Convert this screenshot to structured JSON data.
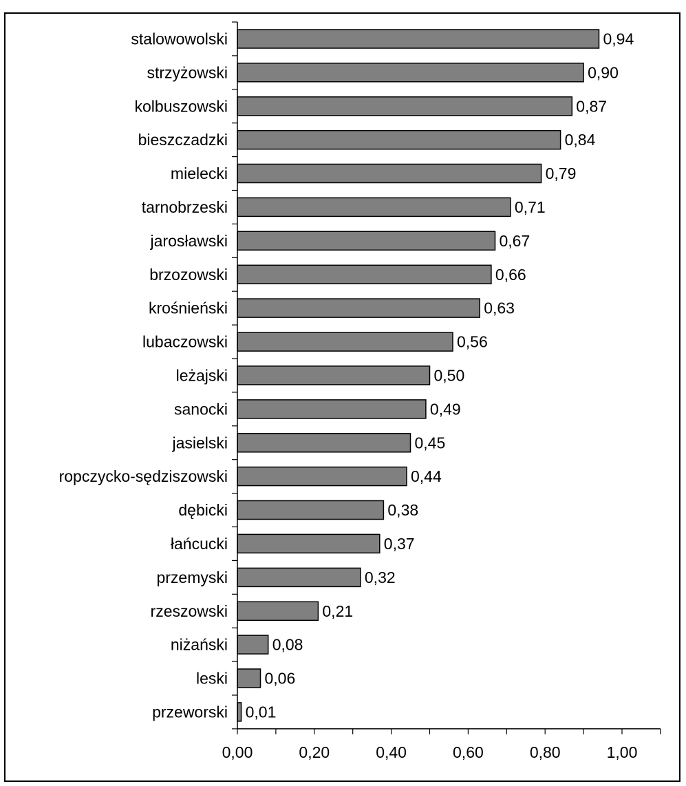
{
  "chart_data": {
    "type": "bar",
    "orientation": "horizontal",
    "title": "",
    "xlabel": "",
    "ylabel": "",
    "categories": [
      "stalowowolski",
      "strzyżowski",
      "kolbuszowski",
      "bieszczadzki",
      "mielecki",
      "tarnobrzeski",
      "jarosławski",
      "brzozowski",
      "krośnieński",
      "lubaczowski",
      "leżajski",
      "sanocki",
      "jasielski",
      "ropczycko-sędziszowski",
      "dębicki",
      "łańcucki",
      "przemyski",
      "rzeszowski",
      "niżański",
      "leski",
      "przeworski"
    ],
    "values": [
      0.94,
      0.9,
      0.87,
      0.84,
      0.79,
      0.71,
      0.67,
      0.66,
      0.63,
      0.56,
      0.5,
      0.49,
      0.45,
      0.44,
      0.38,
      0.37,
      0.32,
      0.21,
      0.08,
      0.06,
      0.01
    ],
    "value_labels": [
      "0,94",
      "0,90",
      "0,87",
      "0,84",
      "0,79",
      "0,71",
      "0,67",
      "0,66",
      "0,63",
      "0,56",
      "0,50",
      "0,49",
      "0,45",
      "0,44",
      "0,38",
      "0,37",
      "0,32",
      "0,21",
      "0,08",
      "0,06",
      "0,01"
    ],
    "xlim": [
      0,
      1.1
    ],
    "xticks": [
      0,
      0.2,
      0.4,
      0.6,
      0.8,
      1.0
    ],
    "xtick_labels": [
      "0,00",
      "0,20",
      "0,40",
      "0,60",
      "0,80",
      "1,00"
    ],
    "grid": false,
    "legend": "none",
    "colors": {
      "bar_fill": "#808080",
      "bar_stroke": "#000000",
      "axis": "#000000"
    }
  }
}
